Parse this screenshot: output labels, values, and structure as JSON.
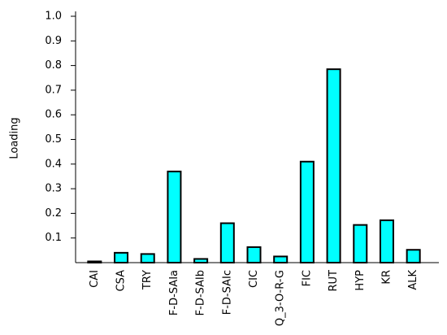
{
  "chart_data": {
    "type": "bar",
    "y_label": "Loading",
    "categories": [
      "CAI",
      "CSA",
      "TRY",
      "F-D-SAIa",
      "F-D-SAIb",
      "F-D-SAIc",
      "CIC",
      "Q_3-O-R-G",
      "FIC",
      "RUT",
      "HYP",
      "KR",
      "ALK"
    ],
    "values": [
      0.005,
      0.04,
      0.035,
      0.37,
      0.015,
      0.16,
      0.063,
      0.025,
      0.41,
      0.785,
      0.153,
      0.172,
      0.052
    ],
    "color": "#00ffff",
    "ylim": [
      0,
      1
    ],
    "yticks": [
      0.1,
      0.2,
      0.3,
      0.4,
      0.5,
      0.6,
      0.7,
      0.8,
      0.9,
      {
        "value": 1,
        "label": "1.0"
      }
    ],
    "grid": false
  }
}
